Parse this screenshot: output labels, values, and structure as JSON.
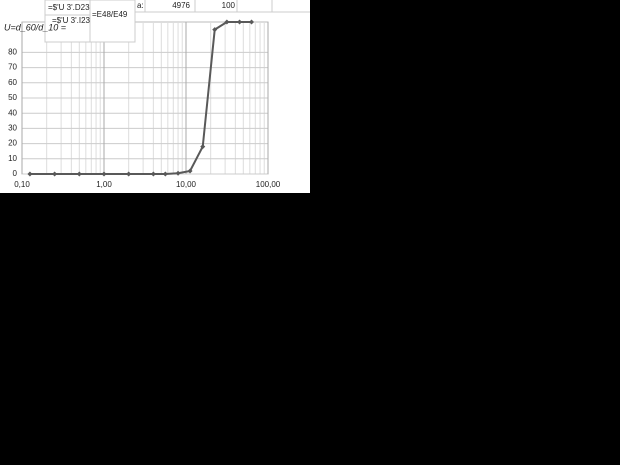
{
  "sheet": {
    "cells": [
      "=$'U 3'.D23",
      "=$'U 3'.I23",
      "=E48/E49",
      "U=d_60/d_10 =",
      "a:",
      "4976",
      "100"
    ]
  },
  "chart_data": {
    "type": "line",
    "log_x": true,
    "grid": true,
    "minor_grid": true,
    "x": [
      0.125,
      0.25,
      0.5,
      1,
      2,
      4,
      5.6,
      8,
      11.2,
      16,
      22.4,
      31.5,
      45,
      63
    ],
    "series": [
      {
        "color": "#595959",
        "values": [
          0,
          0,
          0,
          0,
          0,
          0,
          0,
          0.5,
          2,
          18,
          95,
          100,
          100,
          100
        ]
      }
    ],
    "xlim": [
      0.1,
      100
    ],
    "xticks": [
      {
        "value": 0.1,
        "label": "0,10"
      },
      {
        "value": 1,
        "label": "1,00"
      },
      {
        "value": 10,
        "label": "10,00"
      },
      {
        "value": 100,
        "label": "100,00"
      }
    ],
    "ylim": [
      0,
      100
    ],
    "yticks": [
      0,
      10,
      20,
      30,
      40,
      50,
      60,
      70,
      80
    ]
  }
}
